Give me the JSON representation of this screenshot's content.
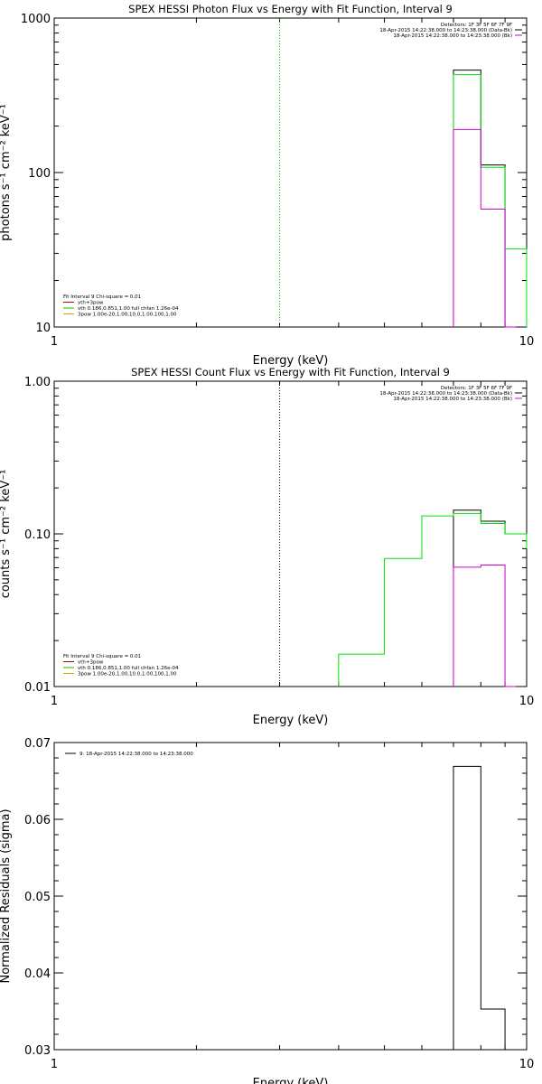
{
  "chart_data": [
    {
      "type": "line",
      "title": "SPEX HESSI Photon Flux vs Energy with Fit Function, Interval 9",
      "xlabel": "Energy (keV)",
      "ylabel": "photons s⁻¹ cm⁻² keV⁻¹",
      "x_scale": "log",
      "y_scale": "log",
      "xlim": [
        1,
        10
      ],
      "ylim": [
        10,
        1000
      ],
      "x_ticks": [
        "1",
        "10"
      ],
      "y_ticks": [
        {
          "value": 1000,
          "label": "1000"
        },
        {
          "value": 100,
          "label": "100"
        },
        {
          "value": 10,
          "label": "10"
        }
      ],
      "vline": {
        "x": 3,
        "color": "#00c800",
        "style": "dotted"
      },
      "legend_top_right": [
        {
          "text": "Detectors: 1F 3F 5F 6F 7F 9F",
          "color": ""
        },
        {
          "text": "18-Apr-2015 14:22:38.000 to 14:23:38.000 (Data-Bk)",
          "color": "#000000"
        },
        {
          "text": "18-Apr-2015 14:22:38.000 to 14:23:38.000 (Bk)",
          "color": "#d000d0"
        }
      ],
      "legend_bottom_left": [
        {
          "text": "Fit Interval 9   Chi-square = 0.01",
          "color": "#000000"
        },
        {
          "text": "vth+3pow",
          "color": "#c00000"
        },
        {
          "text": "vth 0.186,0.851,1.00  full chfan 1.26e-04",
          "color": "#00c800"
        },
        {
          "text": "3pow 1.00e-20,1.00,10.0,1.00,100,1.00",
          "color": "#e0a000"
        }
      ],
      "series": [
        {
          "color": "#000000",
          "x": [
            7,
            8,
            9
          ],
          "values": [
            460,
            112,
            0
          ]
        },
        {
          "color": "#00e000",
          "x": [
            7,
            8,
            9,
            10
          ],
          "values": [
            430,
            108,
            32,
            0
          ]
        },
        {
          "color": "#d000d0",
          "x": [
            7,
            8,
            9
          ],
          "values": [
            190,
            58,
            0
          ]
        }
      ]
    },
    {
      "type": "line",
      "title": "SPEX HESSI Count Flux vs Energy with Fit Function, Interval 9",
      "xlabel": "Energy (keV)",
      "ylabel": "counts s⁻¹ cm⁻² keV⁻¹",
      "x_scale": "log",
      "y_scale": "log",
      "xlim": [
        1,
        10
      ],
      "ylim": [
        0.01,
        1.0
      ],
      "x_ticks": [
        "1",
        "10"
      ],
      "y_ticks": [
        {
          "value": 1.0,
          "label": "1.00"
        },
        {
          "value": 0.1,
          "label": "0.10"
        },
        {
          "value": 0.01,
          "label": "0.01"
        }
      ],
      "vline": {
        "x": 3,
        "color": "#000000",
        "style": "dotted"
      },
      "legend_top_right": [
        {
          "text": "Detectors: 1F 3F 5F 6F 7F 9F",
          "color": ""
        },
        {
          "text": "18-Apr-2015 14:22:38.000 to 14:23:38.000 (Data-Bk)",
          "color": "#000000"
        },
        {
          "text": "18-Apr-2015 14:22:38.000 to 14:23:38.000 (Bk)",
          "color": "#d000d0"
        }
      ],
      "legend_bottom_left": [
        {
          "text": "Fit Interval 9   Chi-square = 0.01",
          "color": "#000000"
        },
        {
          "text": "vth+3pow",
          "color": "#c00000"
        },
        {
          "text": "vth 0.186,0.851,1.00  full chfan 1.26e-04",
          "color": "#00c800"
        },
        {
          "text": "3pow 1.00e-20,1.00,10.0,1.00,100,1.00",
          "color": "#e0a000"
        }
      ],
      "series": [
        {
          "color": "#000000",
          "x": [
            7,
            8,
            9,
            10
          ],
          "values": [
            0.143,
            0.121,
            0.1,
            0.09
          ]
        },
        {
          "color": "#00e000",
          "x": [
            4,
            5,
            6,
            7,
            8,
            9,
            10
          ],
          "values": [
            0.0163,
            0.069,
            0.131,
            0.136,
            0.117,
            0.1,
            0.08
          ]
        },
        {
          "color": "#d000d0",
          "x": [
            7,
            8,
            9
          ],
          "values": [
            0.0605,
            0.0625,
            0.0
          ]
        }
      ]
    },
    {
      "type": "line",
      "title": "",
      "xlabel": "Energy (keV)",
      "ylabel": "Normalized Residuals (sigma)",
      "x_scale": "log",
      "y_scale": "linear",
      "xlim": [
        1,
        10
      ],
      "ylim": [
        0.03,
        0.07
      ],
      "x_ticks": [
        "1",
        "10"
      ],
      "y_ticks": [
        {
          "value": 0.07,
          "label": "0.07"
        },
        {
          "value": 0.06,
          "label": "0.06"
        },
        {
          "value": 0.05,
          "label": "0.05"
        },
        {
          "value": 0.04,
          "label": "0.04"
        },
        {
          "value": 0.03,
          "label": "0.03"
        }
      ],
      "legend_top_left": [
        {
          "text": "9: 18-Apr-2015 14:22:38.000 to 14:23:38.000",
          "color": "#000000"
        }
      ],
      "series": [
        {
          "color": "#000000",
          "x": [
            7,
            8,
            9
          ],
          "values": [
            0.0669,
            0.0353,
            0.03
          ]
        }
      ]
    }
  ]
}
